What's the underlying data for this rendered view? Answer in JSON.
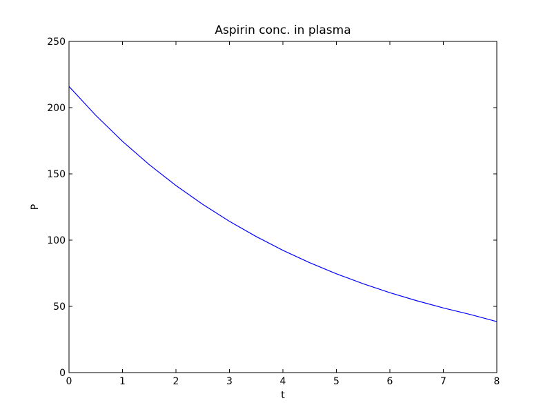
{
  "chart_data": {
    "type": "line",
    "title": "Aspirin conc. in plasma",
    "xlabel": "t",
    "ylabel": "P",
    "xlim": [
      0,
      8
    ],
    "ylim": [
      0,
      250
    ],
    "xticks": [
      0,
      1,
      2,
      3,
      4,
      5,
      6,
      7,
      8
    ],
    "yticks": [
      0,
      50,
      100,
      150,
      200,
      250
    ],
    "grid": false,
    "series": [
      {
        "color": "#0000ff",
        "x": [
          0,
          0.5,
          1,
          1.5,
          2,
          2.5,
          3,
          3.5,
          4,
          4.5,
          5,
          5.5,
          6,
          6.5,
          7,
          7.5,
          8
        ],
        "y": [
          216,
          194.2,
          174.6,
          157.0,
          141.2,
          127.0,
          114.2,
          102.7,
          92.3,
          83.0,
          74.6,
          67.1,
          60.3,
          54.3,
          48.8,
          43.9,
          38.5
        ]
      }
    ]
  }
}
